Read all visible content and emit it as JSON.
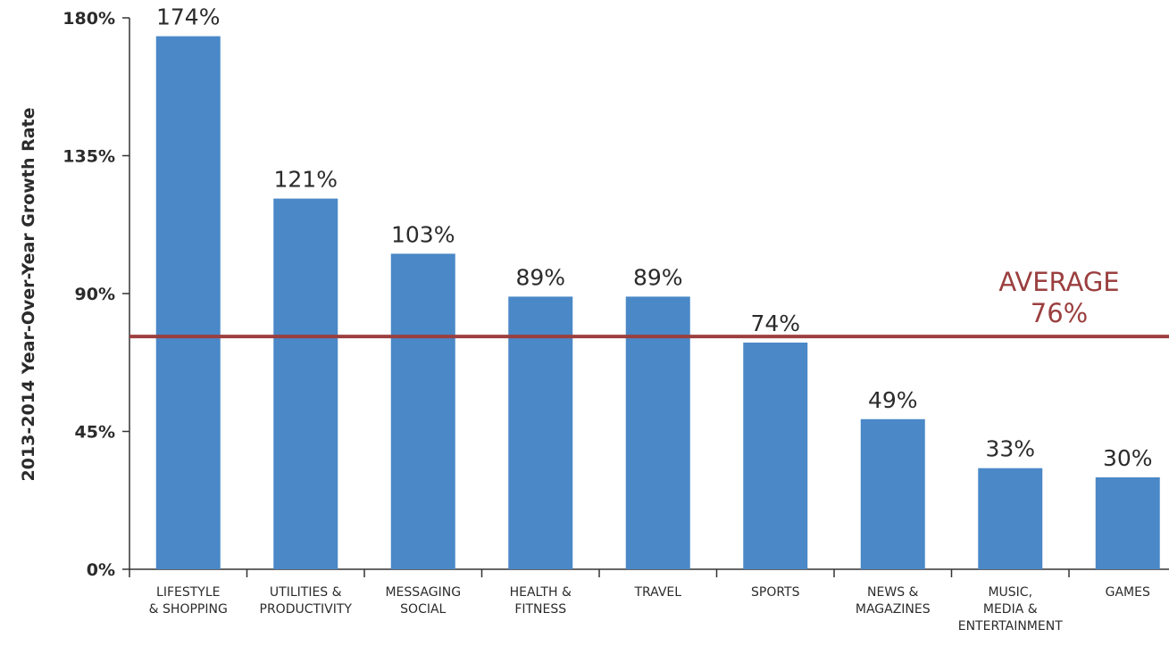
{
  "chart_data": {
    "type": "bar",
    "ylabel": "2013-2014 Year-Over-Year Growth Rate",
    "xlabel": "",
    "ylim": [
      0,
      180
    ],
    "yticks": [
      0,
      45,
      90,
      135,
      180
    ],
    "ytick_labels": [
      "0%",
      "45%",
      "90%",
      "135%",
      "180%"
    ],
    "categories": [
      [
        "LIFESTYLE",
        "& SHOPPING"
      ],
      [
        "UTILITIES &",
        "PRODUCTIVITY"
      ],
      [
        "MESSAGING",
        "SOCIAL"
      ],
      [
        "HEALTH &",
        "FITNESS"
      ],
      [
        "TRAVEL"
      ],
      [
        "SPORTS"
      ],
      [
        "NEWS &",
        "MAGAZINES"
      ],
      [
        "MUSIC,",
        "MEDIA &",
        "ENTERTAINMENT"
      ],
      [
        "GAMES"
      ]
    ],
    "values": [
      174,
      121,
      103,
      89,
      89,
      74,
      49,
      33,
      30
    ],
    "data_labels": [
      "174%",
      "121%",
      "103%",
      "89%",
      "89%",
      "74%",
      "49%",
      "33%",
      "30%"
    ],
    "reference_line": {
      "value": 76,
      "label_lines": [
        "AVERAGE",
        "76%"
      ]
    },
    "grid": false,
    "legend": "none",
    "colors": {
      "bar": "#4a88c7",
      "average_line": "#9b3f3f",
      "axis": "#333333",
      "text": "#2b2b2b"
    }
  }
}
